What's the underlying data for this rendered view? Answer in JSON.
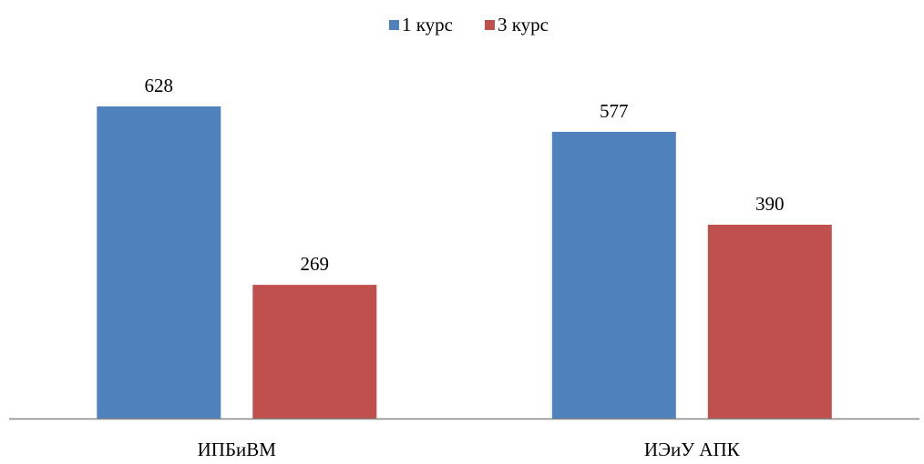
{
  "chart_data": {
    "type": "bar",
    "categories": [
      "ИПБиВМ",
      "ИЭиУ АПК"
    ],
    "series": [
      {
        "name": "1 курс",
        "values": [
          628,
          577
        ],
        "color": "#4F81BD"
      },
      {
        "name": "3 курс",
        "values": [
          269,
          390
        ],
        "color": "#C0504D"
      }
    ],
    "title": "",
    "xlabel": "",
    "ylabel": "",
    "ylim": [
      0,
      700
    ],
    "grid": false,
    "legend_position": "top-center",
    "data_labels": true,
    "axis_color": "#868686"
  }
}
